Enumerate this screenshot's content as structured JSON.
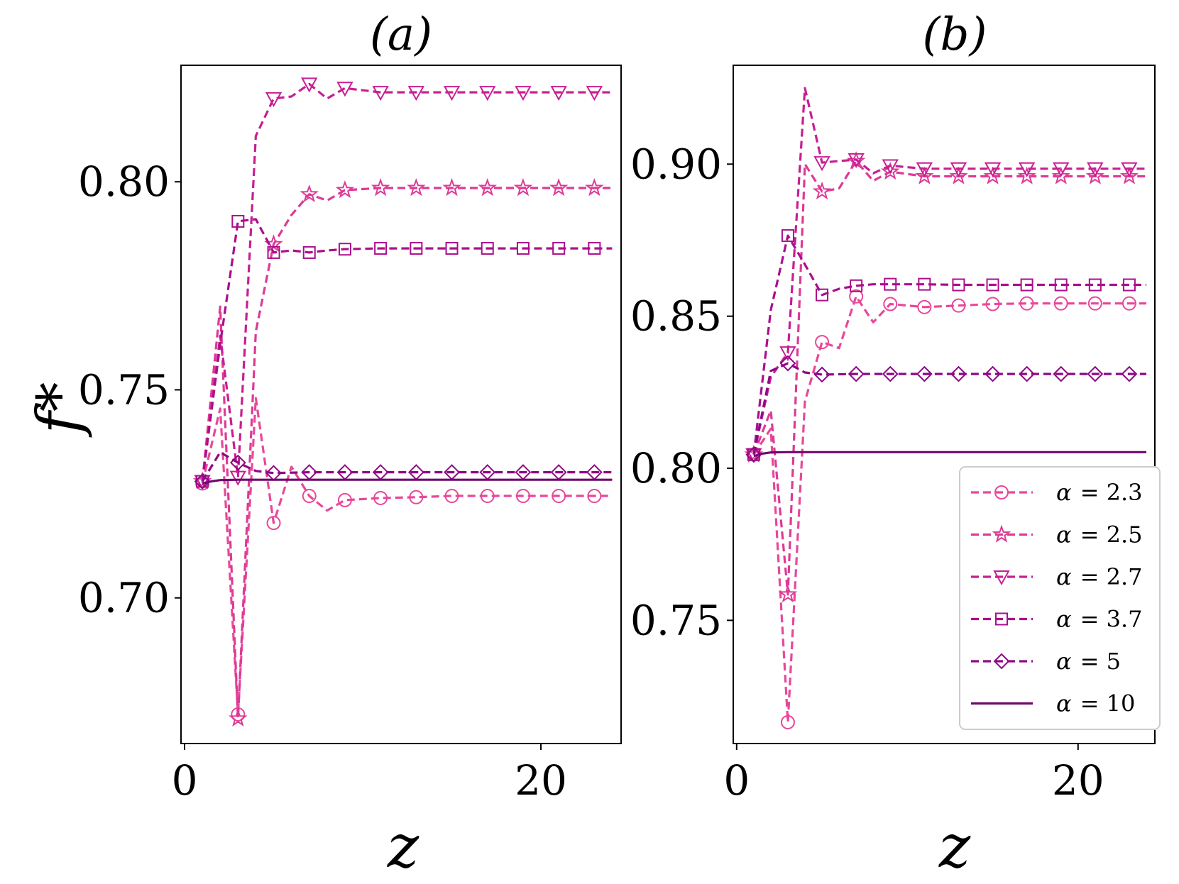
{
  "figure": {
    "ylabel": "f*",
    "xlabel": "z"
  },
  "colors": {
    "a2.3": "#e8489a",
    "a2.5": "#dd3a96",
    "a2.7": "#c81e93",
    "a3.7": "#aa0f8d",
    "a5": "#8e0a85",
    "a10": "#70086f"
  },
  "legend": [
    {
      "label": "α = 2.3",
      "greek": "α",
      "value": "= 2.3",
      "marker": "circle-icon",
      "dash": true
    },
    {
      "label": "α = 2.5",
      "greek": "α",
      "value": "= 2.5",
      "marker": "star-icon",
      "dash": true
    },
    {
      "label": "α = 2.7",
      "greek": "α",
      "value": "= 2.7",
      "marker": "triangle-down-icon",
      "dash": true
    },
    {
      "label": "α = 3.7",
      "greek": "α",
      "value": "= 3.7",
      "marker": "square-icon",
      "dash": true
    },
    {
      "label": "α = 5",
      "greek": "α",
      "value": "= 5",
      "marker": "diamond-icon",
      "dash": true
    },
    {
      "label": "α = 10",
      "greek": "α",
      "value": "= 10",
      "marker": "none",
      "dash": false
    }
  ],
  "chart_data": [
    {
      "type": "line",
      "title": "(a)",
      "xlabel": "z",
      "ylabel": "f*",
      "xlim": [
        -0.2,
        24.5
      ],
      "ylim": [
        0.665,
        0.828
      ],
      "xticks": [
        {
          "v": 0,
          "label": "0"
        },
        {
          "v": 20,
          "label": "20"
        }
      ],
      "yticks": [
        {
          "v": 0.7,
          "label": "0.70"
        },
        {
          "v": 0.75,
          "label": "0.75"
        },
        {
          "v": 0.8,
          "label": "0.80"
        }
      ],
      "series": [
        {
          "name": "α = 2.3",
          "color_key": "a2.3",
          "marker": "circle",
          "dashed": true,
          "points": [
            [
              1,
              0.7275
            ],
            [
              2,
              0.7455
            ],
            [
              3,
              0.672
            ],
            [
              4,
              0.748
            ],
            [
              5,
              0.718
            ],
            [
              6,
              0.7315
            ],
            [
              7,
              0.7245
            ],
            [
              8,
              0.721
            ],
            [
              9,
              0.7235
            ],
            [
              11,
              0.724
            ],
            [
              13,
              0.7242
            ],
            [
              15,
              0.7245
            ],
            [
              17,
              0.7245
            ],
            [
              19,
              0.7245
            ],
            [
              21,
              0.7245
            ],
            [
              23,
              0.7245
            ],
            [
              24,
              0.7245
            ]
          ],
          "marked_x": [
            1,
            3,
            5,
            7,
            9,
            11,
            13,
            15,
            17,
            19,
            21,
            23
          ]
        },
        {
          "name": "α = 2.5",
          "color_key": "a2.5",
          "marker": "star",
          "dashed": true,
          "points": [
            [
              1,
              0.728
            ],
            [
              2,
              0.77
            ],
            [
              3,
              0.671
            ],
            [
              4,
              0.764
            ],
            [
              5,
              0.785
            ],
            [
              6,
              0.792
            ],
            [
              7,
              0.797
            ],
            [
              8,
              0.7955
            ],
            [
              9,
              0.798
            ],
            [
              11,
              0.7985
            ],
            [
              13,
              0.7985
            ],
            [
              15,
              0.7985
            ],
            [
              17,
              0.7985
            ],
            [
              19,
              0.7985
            ],
            [
              21,
              0.7985
            ],
            [
              23,
              0.7985
            ],
            [
              24,
              0.7985
            ]
          ],
          "marked_x": [
            1,
            3,
            5,
            7,
            9,
            11,
            13,
            15,
            17,
            19,
            21,
            23
          ]
        },
        {
          "name": "α = 2.7",
          "color_key": "a2.7",
          "marker": "triangle",
          "dashed": true,
          "points": [
            [
              1,
              0.728
            ],
            [
              2,
              0.763
            ],
            [
              3,
              0.729
            ],
            [
              4,
              0.811
            ],
            [
              5,
              0.82
            ],
            [
              6,
              0.8205
            ],
            [
              7,
              0.8235
            ],
            [
              8,
              0.82
            ],
            [
              9,
              0.8225
            ],
            [
              11,
              0.8215
            ],
            [
              13,
              0.8215
            ],
            [
              15,
              0.8215
            ],
            [
              17,
              0.8215
            ],
            [
              19,
              0.8215
            ],
            [
              21,
              0.8215
            ],
            [
              23,
              0.8215
            ],
            [
              24,
              0.8215
            ]
          ],
          "marked_x": [
            1,
            3,
            5,
            7,
            9,
            11,
            13,
            15,
            17,
            19,
            21,
            23
          ]
        },
        {
          "name": "α = 3.7",
          "color_key": "a3.7",
          "marker": "square",
          "dashed": true,
          "points": [
            [
              1,
              0.728
            ],
            [
              2,
              0.761
            ],
            [
              3,
              0.7905
            ],
            [
              4,
              0.791
            ],
            [
              5,
              0.783
            ],
            [
              6,
              0.7835
            ],
            [
              7,
              0.783
            ],
            [
              8,
              0.7835
            ],
            [
              9,
              0.7838
            ],
            [
              11,
              0.784
            ],
            [
              13,
              0.784
            ],
            [
              15,
              0.784
            ],
            [
              17,
              0.784
            ],
            [
              19,
              0.784
            ],
            [
              21,
              0.784
            ],
            [
              23,
              0.784
            ],
            [
              24,
              0.784
            ]
          ],
          "marked_x": [
            1,
            3,
            5,
            7,
            9,
            11,
            13,
            15,
            17,
            19,
            21,
            23
          ]
        },
        {
          "name": "α = 5",
          "color_key": "a5",
          "marker": "diamond",
          "dashed": true,
          "points": [
            [
              1,
              0.728
            ],
            [
              2,
              0.735
            ],
            [
              3,
              0.7325
            ],
            [
              4,
              0.7305
            ],
            [
              5,
              0.73
            ],
            [
              7,
              0.7302
            ],
            [
              9,
              0.7302
            ],
            [
              11,
              0.7302
            ],
            [
              13,
              0.7302
            ],
            [
              15,
              0.7302
            ],
            [
              17,
              0.7302
            ],
            [
              19,
              0.7302
            ],
            [
              21,
              0.7302
            ],
            [
              23,
              0.7302
            ],
            [
              24,
              0.7302
            ]
          ],
          "marked_x": [
            1,
            3,
            5,
            7,
            9,
            11,
            13,
            15,
            17,
            19,
            21,
            23
          ]
        },
        {
          "name": "α = 10",
          "color_key": "a10",
          "marker": "none",
          "dashed": false,
          "points": [
            [
              1,
              0.7275
            ],
            [
              1.5,
              0.728
            ],
            [
              2,
              0.7283
            ],
            [
              3,
              0.7284
            ],
            [
              24,
              0.7284
            ]
          ],
          "marked_x": []
        }
      ]
    },
    {
      "type": "line",
      "title": "(b)",
      "xlabel": "z",
      "ylabel": "",
      "xlim": [
        -0.2,
        24.5
      ],
      "ylim": [
        0.7095,
        0.9325
      ],
      "xticks": [
        {
          "v": 0,
          "label": "0"
        },
        {
          "v": 20,
          "label": "20"
        }
      ],
      "yticks": [
        {
          "v": 0.75,
          "label": "0.75"
        },
        {
          "v": 0.8,
          "label": "0.80"
        },
        {
          "v": 0.85,
          "label": "0.85"
        },
        {
          "v": 0.9,
          "label": "0.90"
        }
      ],
      "series": [
        {
          "name": "α = 2.3",
          "color_key": "a2.3",
          "marker": "circle",
          "dashed": true,
          "points": [
            [
              1,
              0.8045
            ],
            [
              2,
              0.813
            ],
            [
              3,
              0.7165
            ],
            [
              4,
              0.822
            ],
            [
              5,
              0.8415
            ],
            [
              6,
              0.8395
            ],
            [
              7,
              0.8565
            ],
            [
              8,
              0.848
            ],
            [
              9,
              0.854
            ],
            [
              11,
              0.853
            ],
            [
              13,
              0.8535
            ],
            [
              15,
              0.854
            ],
            [
              17,
              0.8542
            ],
            [
              19,
              0.8542
            ],
            [
              21,
              0.8542
            ],
            [
              23,
              0.8542
            ],
            [
              24,
              0.8542
            ]
          ],
          "marked_x": [
            1,
            3,
            5,
            7,
            9,
            11,
            13,
            15,
            17,
            19,
            21,
            23
          ]
        },
        {
          "name": "α = 2.5",
          "color_key": "a2.5",
          "marker": "star",
          "dashed": true,
          "points": [
            [
              1,
              0.8045
            ],
            [
              2,
              0.819
            ],
            [
              3,
              0.7585
            ],
            [
              4,
              0.9
            ],
            [
              5,
              0.891
            ],
            [
              6,
              0.892
            ],
            [
              7,
              0.901
            ],
            [
              8,
              0.8945
            ],
            [
              9,
              0.8975
            ],
            [
              11,
              0.896
            ],
            [
              13,
              0.896
            ],
            [
              15,
              0.896
            ],
            [
              17,
              0.896
            ],
            [
              19,
              0.896
            ],
            [
              21,
              0.896
            ],
            [
              23,
              0.896
            ],
            [
              24,
              0.896
            ]
          ],
          "marked_x": [
            1,
            3,
            5,
            7,
            9,
            11,
            13,
            15,
            17,
            19,
            21,
            23
          ]
        },
        {
          "name": "α = 2.7",
          "color_key": "a2.7",
          "marker": "triangle",
          "dashed": true,
          "points": [
            [
              1,
              0.8045
            ],
            [
              2,
              0.83
            ],
            [
              3,
              0.838
            ],
            [
              4,
              0.925
            ],
            [
              5,
              0.9005
            ],
            [
              6,
              0.901
            ],
            [
              7,
              0.9015
            ],
            [
              8,
              0.897
            ],
            [
              9,
              0.8995
            ],
            [
              11,
              0.8985
            ],
            [
              13,
              0.8985
            ],
            [
              15,
              0.8985
            ],
            [
              17,
              0.8985
            ],
            [
              19,
              0.8985
            ],
            [
              21,
              0.8985
            ],
            [
              23,
              0.8985
            ],
            [
              24,
              0.8985
            ]
          ],
          "marked_x": [
            1,
            3,
            5,
            7,
            9,
            11,
            13,
            15,
            17,
            19,
            21,
            23
          ]
        },
        {
          "name": "α = 3.7",
          "color_key": "a3.7",
          "marker": "square",
          "dashed": true,
          "points": [
            [
              1,
              0.8045
            ],
            [
              2,
              0.852
            ],
            [
              3,
              0.8765
            ],
            [
              4,
              0.867
            ],
            [
              5,
              0.857
            ],
            [
              6,
              0.859
            ],
            [
              7,
              0.86
            ],
            [
              8,
              0.8605
            ],
            [
              9,
              0.8605
            ],
            [
              11,
              0.8605
            ],
            [
              13,
              0.8603
            ],
            [
              15,
              0.8603
            ],
            [
              17,
              0.8603
            ],
            [
              19,
              0.8603
            ],
            [
              21,
              0.8603
            ],
            [
              23,
              0.8603
            ],
            [
              24,
              0.8603
            ]
          ],
          "marked_x": [
            1,
            3,
            5,
            7,
            9,
            11,
            13,
            15,
            17,
            19,
            21,
            23
          ]
        },
        {
          "name": "α = 5",
          "color_key": "a5",
          "marker": "diamond",
          "dashed": true,
          "points": [
            [
              1,
              0.8045
            ],
            [
              2,
              0.832
            ],
            [
              3,
              0.8345
            ],
            [
              4,
              0.8315
            ],
            [
              5,
              0.8308
            ],
            [
              7,
              0.831
            ],
            [
              9,
              0.831
            ],
            [
              11,
              0.831
            ],
            [
              13,
              0.831
            ],
            [
              15,
              0.831
            ],
            [
              17,
              0.831
            ],
            [
              19,
              0.831
            ],
            [
              21,
              0.831
            ],
            [
              23,
              0.831
            ],
            [
              24,
              0.831
            ]
          ],
          "marked_x": [
            1,
            3,
            5,
            7,
            9,
            11,
            13,
            15,
            17,
            19,
            21,
            23
          ]
        },
        {
          "name": "α = 10",
          "color_key": "a10",
          "marker": "none",
          "dashed": false,
          "points": [
            [
              1,
              0.804
            ],
            [
              1.5,
              0.8048
            ],
            [
              2,
              0.8052
            ],
            [
              3,
              0.8053
            ],
            [
              24,
              0.8053
            ]
          ],
          "marked_x": []
        }
      ]
    }
  ]
}
